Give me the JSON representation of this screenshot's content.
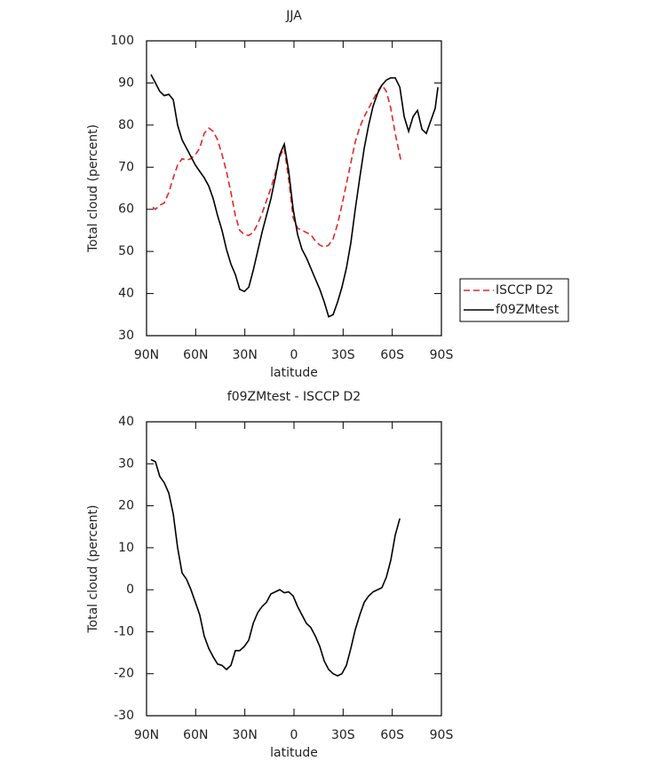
{
  "chart_data": [
    {
      "type": "line",
      "title": "JJA",
      "xlabel": "latitude",
      "ylabel": "Total cloud (percent)",
      "xlim": [
        90,
        -90
      ],
      "xticks": [
        {
          "value": 90,
          "label": "90N"
        },
        {
          "value": 60,
          "label": "60N"
        },
        {
          "value": 30,
          "label": "30N"
        },
        0,
        {
          "value": -30,
          "label": "30S"
        },
        {
          "value": -60,
          "label": "60S"
        },
        {
          "value": -90,
          "label": "90S"
        }
      ],
      "ylim": [
        30,
        100
      ],
      "yticks": [
        30,
        40,
        50,
        60,
        70,
        80,
        90,
        100
      ],
      "legend": "right",
      "series": [
        {
          "name": "ISCCP D2",
          "color": "#e0282a",
          "style": "dashed",
          "x": [
            86.2,
            84.6,
            81.9,
            79.2,
            76.4,
            73.7,
            71,
            68.3,
            65.6,
            62.9,
            60.2,
            57.5,
            54.8,
            52,
            49.3,
            46.6,
            43.9,
            41.2,
            38.5,
            35.8,
            33.1,
            30.3,
            27.6,
            24.9,
            22.2,
            19.5,
            16.8,
            14.1,
            11.4,
            8.7,
            5.9,
            3.2,
            0.5,
            -2.2,
            -4.9,
            -7.6,
            -10.3,
            -13,
            -15.8,
            -18.5,
            -21.2,
            -23.9,
            -26.6,
            -29.3,
            -32,
            -34.7,
            -37.4,
            -40.2,
            -42.9,
            -45.6,
            -48.3,
            -51,
            -53.7,
            -56.4,
            -59.1,
            -61.8,
            -65.6
          ],
          "values": [
            60.5,
            60,
            61,
            61.5,
            64,
            67.5,
            70.5,
            72,
            71.7,
            72,
            73,
            74.5,
            78,
            79.3,
            78.5,
            76.5,
            73,
            69,
            64,
            58.5,
            55,
            54,
            53.8,
            54.5,
            56.5,
            59,
            62,
            65,
            68.5,
            72.5,
            74.5,
            67,
            58,
            55.5,
            55,
            54.5,
            54,
            52.5,
            51.5,
            51,
            51.5,
            53,
            56.5,
            61,
            66,
            71,
            76,
            79.5,
            82,
            84,
            86,
            88,
            89.5,
            88,
            84,
            78,
            71
          ]
        },
        {
          "name": "f09ZMtest",
          "color": "#000000",
          "style": "solid",
          "x": [
            87.3,
            84.6,
            81.9,
            79.2,
            76.4,
            73.7,
            71,
            68.3,
            65.6,
            62.9,
            60.2,
            57.5,
            54.8,
            52,
            49.3,
            46.6,
            43.9,
            41.2,
            38.5,
            35.8,
            33.1,
            30.3,
            27.6,
            24.9,
            22.2,
            19.5,
            16.8,
            14.1,
            11.4,
            8.7,
            5.9,
            3.2,
            0.5,
            -2.2,
            -4.9,
            -7.6,
            -10.3,
            -13,
            -15.8,
            -18.5,
            -21.2,
            -23.9,
            -26.6,
            -29.3,
            -32,
            -34.7,
            -37.4,
            -40.2,
            -42.9,
            -45.6,
            -48.3,
            -51,
            -53.7,
            -56.4,
            -59.1,
            -61.8,
            -64.6,
            -67.3,
            -70,
            -72.7,
            -75.4,
            -78.1,
            -80.8,
            -83.5,
            -86.2,
            -87.9
          ],
          "values": [
            92,
            90,
            88,
            87,
            87.3,
            86,
            80,
            76.5,
            74.5,
            72.5,
            70.5,
            69,
            67.5,
            65.5,
            62.5,
            58.5,
            55,
            50.5,
            47,
            44.5,
            41,
            40.5,
            41.5,
            45.5,
            50,
            54.5,
            58.5,
            62.5,
            67.5,
            73,
            75.5,
            69,
            60,
            54,
            50.5,
            48.5,
            46,
            43.5,
            41,
            38,
            34.5,
            35,
            38,
            41.5,
            46,
            52,
            60,
            67.5,
            74.5,
            80,
            84.5,
            87.5,
            89.5,
            90.7,
            91.2,
            91.2,
            89,
            82,
            78.5,
            82,
            83.5,
            79,
            78,
            81,
            84,
            89
          ]
        }
      ]
    },
    {
      "type": "line",
      "title": "f09ZMtest - ISCCP D2",
      "xlabel": "latitude",
      "ylabel": "Total cloud (percent)",
      "xlim": [
        90,
        -90
      ],
      "xticks": [
        {
          "value": 90,
          "label": "90N"
        },
        {
          "value": 60,
          "label": "60N"
        },
        {
          "value": 30,
          "label": "30N"
        },
        0,
        {
          "value": -30,
          "label": "30S"
        },
        {
          "value": -60,
          "label": "60S"
        },
        {
          "value": -90,
          "label": "90S"
        }
      ],
      "ylim": [
        -30,
        40
      ],
      "yticks": [
        -30,
        -20,
        -10,
        0,
        10,
        20,
        30,
        40
      ],
      "series": [
        {
          "color": "#000000",
          "style": "solid",
          "x": [
            87.3,
            84.6,
            81.9,
            79.2,
            76.4,
            73.7,
            71,
            68.3,
            65.6,
            62.9,
            60.2,
            57.5,
            54.8,
            52,
            49.3,
            46.6,
            43.9,
            41.2,
            38.5,
            35.8,
            33.1,
            30.3,
            27.6,
            24.9,
            22.2,
            19.5,
            16.8,
            14.1,
            11.4,
            8.7,
            5.9,
            3.2,
            0.5,
            -2.2,
            -4.9,
            -7.6,
            -10.3,
            -13,
            -15.8,
            -18.5,
            -21.2,
            -23.9,
            -26.6,
            -29.3,
            -32,
            -34.7,
            -37.4,
            -40.2,
            -42.9,
            -45.6,
            -48.3,
            -51,
            -53.7,
            -56.4,
            -59.1,
            -61.8,
            -64.6
          ],
          "values": [
            31,
            30.5,
            27,
            25.5,
            23,
            18,
            10,
            4,
            2.5,
            0,
            -3,
            -6,
            -11,
            -14,
            -16,
            -17.7,
            -18,
            -19,
            -18,
            -14.5,
            -14.5,
            -13.5,
            -12,
            -8,
            -5.5,
            -4,
            -3,
            -1,
            -0.5,
            0,
            -0.7,
            -0.5,
            -1.5,
            -4,
            -6,
            -8,
            -9,
            -11,
            -13.5,
            -17,
            -19,
            -20,
            -20.5,
            -20,
            -18,
            -14,
            -9.5,
            -6,
            -3,
            -1.5,
            -0.5,
            0,
            0.5,
            3,
            7,
            13,
            17
          ]
        }
      ]
    }
  ]
}
